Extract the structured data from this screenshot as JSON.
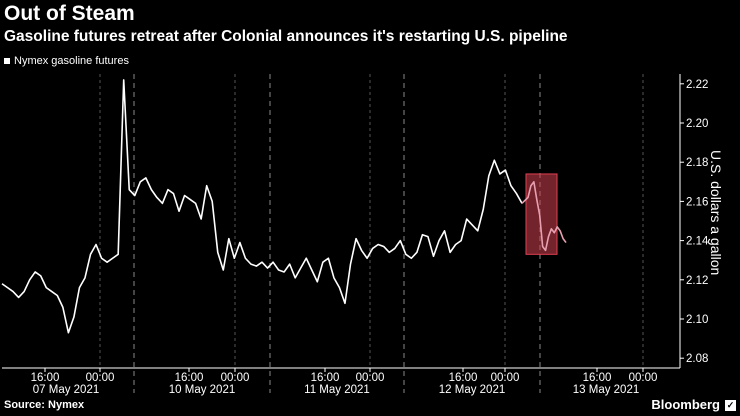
{
  "title": "Out of Steam",
  "subtitle": "Gasoline futures retreat after Colonial announces it's restarting U.S. pipeline",
  "legend": "Nymex gasoline futures",
  "source": "Source: Nymex",
  "brand": "Bloomberg",
  "brand_icon": "bloomberg-icon",
  "colors": {
    "background": "#000000",
    "line": "#ffffff",
    "highlight": "#e8a0b0",
    "highlight_box": "#d04050"
  },
  "chart_data": {
    "type": "line",
    "title": "Out of Steam",
    "subtitle": "Gasoline futures retreat after Colonial announces it's restarting U.S. pipeline",
    "ylabel": "U.S. dollars a gallon",
    "ylim": [
      2.075,
      2.225
    ],
    "yticks": [
      2.08,
      2.1,
      2.12,
      2.14,
      2.16,
      2.18,
      2.2,
      2.22
    ],
    "y_axis_side": "right",
    "x_tick_labels": [
      "16:00",
      "00:00",
      "16:00",
      "00:00",
      "16:00",
      "00:00",
      "16:00",
      "00:00",
      "16:00",
      "00:00"
    ],
    "x_date_labels": [
      "07 May 2021",
      "10 May 2021",
      "11 May 2021",
      "12 May 2021",
      "13 May 2021"
    ],
    "grid": "vertical dashed",
    "series": [
      {
        "name": "Nymex gasoline futures",
        "values": [
          2.118,
          2.116,
          2.114,
          2.111,
          2.114,
          2.12,
          2.124,
          2.122,
          2.116,
          2.114,
          2.112,
          2.106,
          2.093,
          2.101,
          2.116,
          2.121,
          2.133,
          2.138,
          2.131,
          2.129,
          2.131,
          2.133,
          2.222,
          2.166,
          2.163,
          2.17,
          2.172,
          2.166,
          2.162,
          2.159,
          2.166,
          2.164,
          2.155,
          2.163,
          2.161,
          2.159,
          2.151,
          2.168,
          2.16,
          2.134,
          2.125,
          2.141,
          2.131,
          2.139,
          2.131,
          2.128,
          2.127,
          2.129,
          2.126,
          2.129,
          2.125,
          2.124,
          2.128,
          2.121,
          2.126,
          2.131,
          2.125,
          2.119,
          2.129,
          2.131,
          2.121,
          2.116,
          2.108,
          2.128,
          2.141,
          2.135,
          2.131,
          2.136,
          2.138,
          2.137,
          2.134,
          2.136,
          2.14,
          2.133,
          2.131,
          2.134,
          2.143,
          2.142,
          2.132,
          2.14,
          2.145,
          2.134,
          2.138,
          2.14,
          2.151,
          2.148,
          2.145,
          2.156,
          2.173,
          2.181,
          2.174,
          2.176,
          2.168,
          2.164,
          2.159
        ],
        "highlighted_segment_values": [
          2.162,
          2.168,
          2.17,
          2.161,
          2.153,
          2.137,
          2.135,
          2.142,
          2.146,
          2.144,
          2.147,
          2.145,
          2.141,
          2.139
        ],
        "highlight_range": [
          2.133,
          2.174
        ]
      }
    ]
  }
}
